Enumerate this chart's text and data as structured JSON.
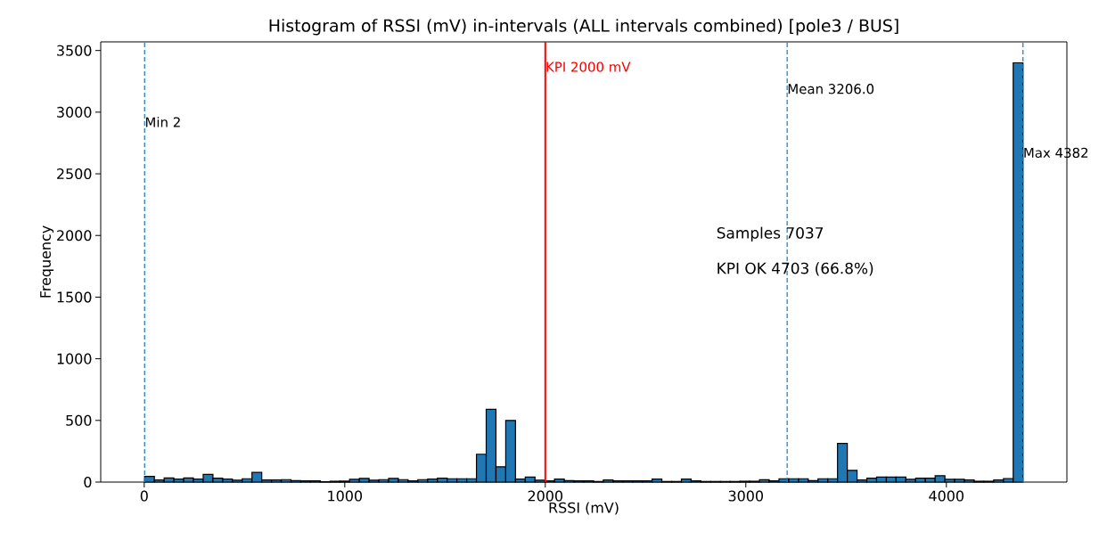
{
  "chart_data": {
    "type": "histogram",
    "title": "Histogram of RSSI (mV) in-intervals (ALL intervals combined) [pole3 / BUS]",
    "xlabel": "RSSI (mV)",
    "ylabel": "Frequency",
    "color": "#1f77b4",
    "bins": [
      2,
      50.7,
      99.3,
      148,
      196.7,
      245.3,
      294,
      342.7,
      391.3,
      440,
      488.7,
      537.3,
      586,
      634.7,
      683.3,
      732,
      780.7,
      829.3,
      878,
      926.7,
      975.3,
      1024,
      1072.7,
      1121.3,
      1170,
      1218.7,
      1267.3,
      1316,
      1364.7,
      1413.3,
      1462,
      1510.7,
      1559.3,
      1608,
      1656.7,
      1705.3,
      1754,
      1802.7,
      1851.3,
      1900,
      1948.7,
      1997.3,
      2046,
      2094.7,
      2143.3,
      2192,
      2240.7,
      2289.3,
      2338,
      2386.7,
      2435.3,
      2484,
      2532.7,
      2581.3,
      2630,
      2678.7,
      2727.3,
      2776,
      2824.7,
      2873.3,
      2922,
      2970.7,
      3019.3,
      3068,
      3116.7,
      3165.3,
      3214,
      3262.7,
      3311.3,
      3360,
      3408.7,
      3457.3,
      3506,
      3554.7,
      3603.3,
      3652,
      3700.7,
      3749.3,
      3798,
      3846.7,
      3895.3,
      3944,
      3992.7,
      4041.3,
      4090,
      4138.7,
      4187.3,
      4236,
      4284.7,
      4333.3,
      4382
    ],
    "values": [
      46,
      17,
      34,
      24,
      34,
      24,
      63,
      31,
      24,
      15,
      27,
      78,
      17,
      17,
      20,
      12,
      10,
      10,
      3,
      7,
      8,
      22,
      30,
      15,
      20,
      30,
      20,
      10,
      20,
      24,
      32,
      27,
      27,
      27,
      226,
      590,
      124,
      500,
      24,
      41,
      15,
      10,
      24,
      12,
      10,
      10,
      5,
      17,
      10,
      10,
      10,
      10,
      24,
      5,
      5,
      24,
      10,
      5,
      5,
      5,
      5,
      7,
      7,
      19,
      10,
      27,
      27,
      27,
      12,
      27,
      27,
      313,
      95,
      17,
      32,
      41,
      41,
      41,
      22,
      32,
      32,
      51,
      22,
      22,
      17,
      7,
      7,
      17,
      29,
      3400
    ],
    "xlim": [
      -217,
      4601
    ],
    "ylim": [
      0,
      3570
    ],
    "xticks": [
      0,
      1000,
      2000,
      3000,
      4000
    ],
    "yticks": [
      0,
      500,
      1000,
      1500,
      2000,
      2500,
      3000,
      3500
    ],
    "ref_lines": [
      {
        "axis": "x",
        "value": 2,
        "label": "Min 2",
        "color": "#1f77b4",
        "line_style": "dashed"
      },
      {
        "axis": "x",
        "value": 2000,
        "label": "KPI 2000 mV",
        "color": "#ff0000",
        "line_style": "solid"
      },
      {
        "axis": "x",
        "value": 3206.0,
        "label": "Mean 3206.0",
        "color": "#1f77b4",
        "line_style": "dashed"
      },
      {
        "axis": "x",
        "value": 4382,
        "label": "Max 4382",
        "color": "#1f77b4",
        "line_style": "dashed"
      }
    ],
    "annotations": [
      "Samples 7037",
      "KPI OK 4703 (66.8%)"
    ]
  }
}
